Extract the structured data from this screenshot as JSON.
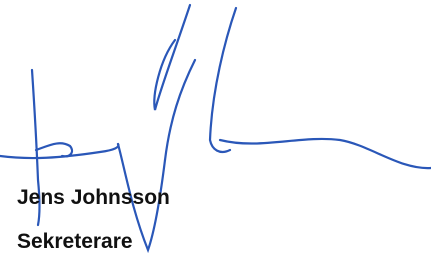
{
  "signature": {
    "name": "Jens Johnsson",
    "role": "Sekreterare"
  }
}
